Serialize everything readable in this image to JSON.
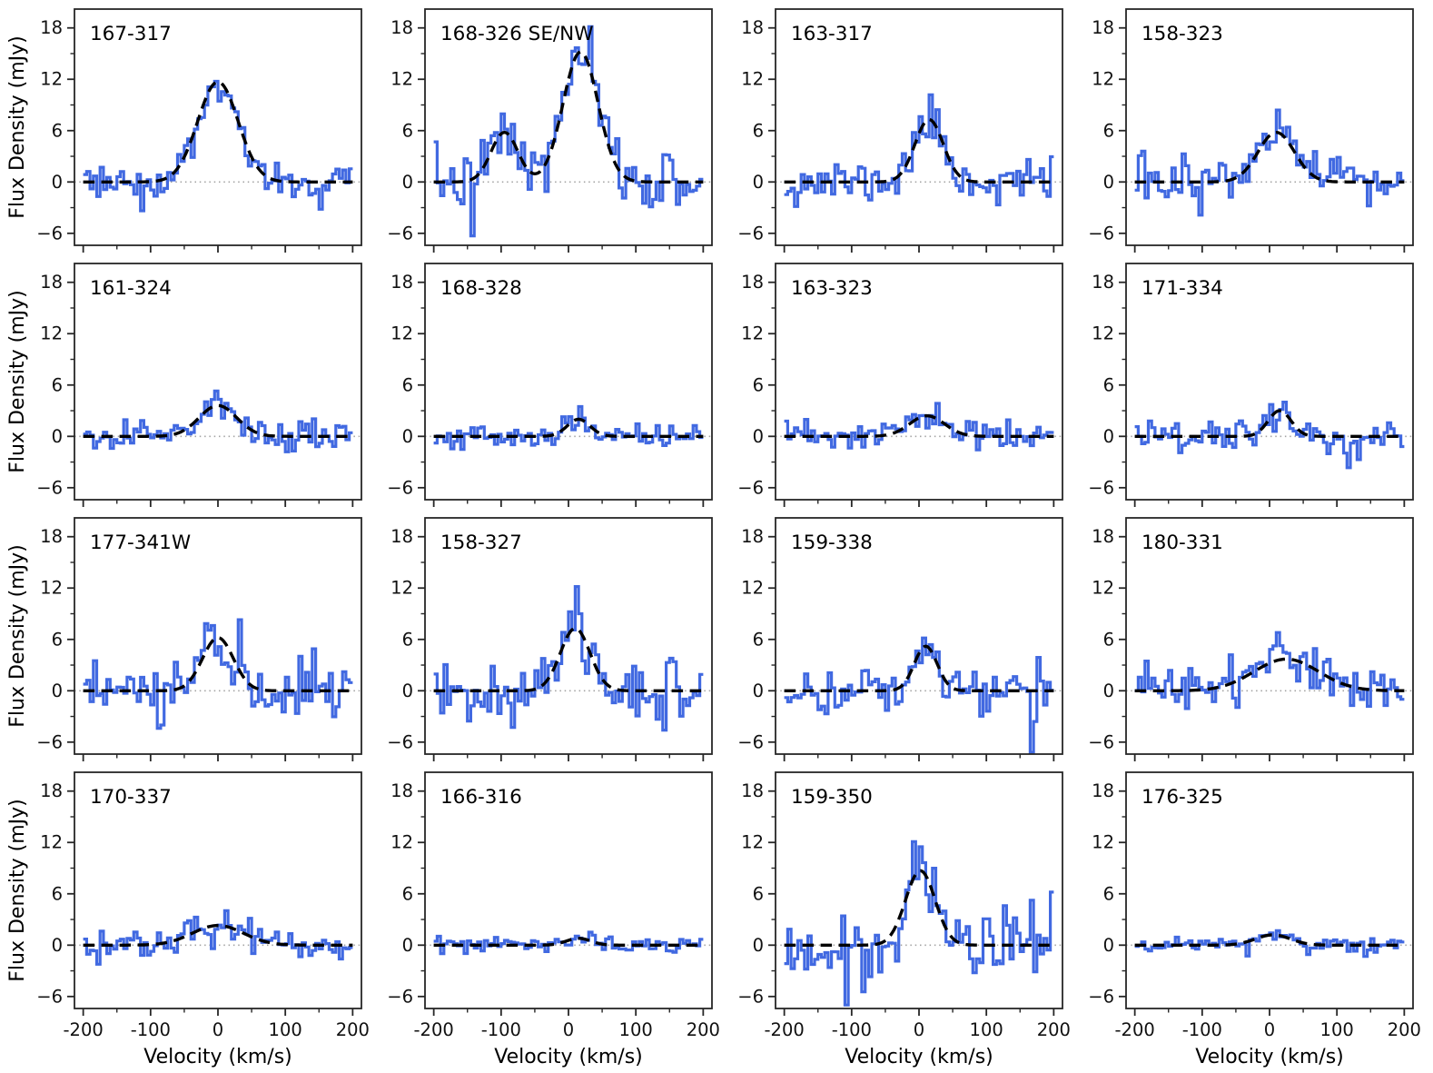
{
  "figure": {
    "ylabel": "Flux Density (mJy)",
    "xlabel": "Velocity (km/s)",
    "colors": {
      "spectrum": "#4169e1",
      "fit": "#000000",
      "zero_line": "#a3a3a3",
      "axis": "#262626",
      "text": "#111111"
    },
    "xlim": [
      -213,
      213
    ],
    "ylim": [
      -7.4,
      20.2
    ],
    "x_ticks": [
      {
        "v": -200,
        "label": "-200"
      },
      {
        "v": -100,
        "label": "-100"
      },
      {
        "v": 0,
        "label": "0"
      },
      {
        "v": 100,
        "label": "100"
      },
      {
        "v": 200,
        "label": "200"
      }
    ],
    "y_ticks": [
      {
        "v": 18,
        "label": "18"
      },
      {
        "v": 12,
        "label": "12"
      },
      {
        "v": 6,
        "label": "6"
      },
      {
        "v": 0,
        "label": "0"
      },
      {
        "v": -6,
        "label": "−6"
      }
    ],
    "x_minor_ticks": [
      -150,
      -50,
      50,
      150
    ],
    "y_minor_ticks": [
      -3,
      3,
      9,
      15
    ]
  },
  "chart_data": {
    "type": "line",
    "description": "4x4 grid of emission-line spectra: blue stepped histogram (observed flux density vs velocity) with black dashed Gaussian fit and dotted zero level in each panel",
    "layout": {
      "rows": 4,
      "cols": 4
    },
    "x_range_km_s": [
      -200,
      200
    ],
    "bin_width_km_s": 5,
    "x_axis_label": "Velocity (km/s)",
    "y_axis_label": "Flux Density (mJy)",
    "panels": [
      {
        "label": "167-317",
        "row": 0,
        "col": 0,
        "fit_gaussians": [
          {
            "amp_mjy": 11.7,
            "center_km_s": 0,
            "sigma_km_s": 30
          }
        ],
        "noise_rms_mjy": 1.1,
        "noise_seed": 3,
        "spikes": []
      },
      {
        "label": "168-326 SE/NW",
        "row": 0,
        "col": 1,
        "fit_gaussians": [
          {
            "amp_mjy": 5.8,
            "center_km_s": -95,
            "sigma_km_s": 20
          },
          {
            "amp_mjy": 15.2,
            "center_km_s": 18,
            "sigma_km_s": 26
          }
        ],
        "noise_rms_mjy": 1.7,
        "noise_seed": 7,
        "spikes": [
          {
            "v_km_s": -145,
            "flux_mjy": -6.3
          }
        ]
      },
      {
        "label": "163-317",
        "row": 0,
        "col": 2,
        "fit_gaussians": [
          {
            "amp_mjy": 7.3,
            "center_km_s": 15,
            "sigma_km_s": 21
          }
        ],
        "noise_rms_mjy": 1.3,
        "noise_seed": 11,
        "spikes": []
      },
      {
        "label": "158-323",
        "row": 0,
        "col": 3,
        "fit_gaussians": [
          {
            "amp_mjy": 5.8,
            "center_km_s": 10,
            "sigma_km_s": 27
          }
        ],
        "noise_rms_mjy": 1.4,
        "noise_seed": 13,
        "spikes": []
      },
      {
        "label": "161-324",
        "row": 1,
        "col": 0,
        "fit_gaussians": [
          {
            "amp_mjy": 3.6,
            "center_km_s": 0,
            "sigma_km_s": 28
          }
        ],
        "noise_rms_mjy": 0.9,
        "noise_seed": 17,
        "spikes": [
          {
            "v_km_s": -5,
            "flux_mjy": 5.3
          }
        ]
      },
      {
        "label": "168-328",
        "row": 1,
        "col": 1,
        "fit_gaussians": [
          {
            "amp_mjy": 2.0,
            "center_km_s": 15,
            "sigma_km_s": 17
          }
        ],
        "noise_rms_mjy": 0.7,
        "noise_seed": 19,
        "spikes": []
      },
      {
        "label": "163-323",
        "row": 1,
        "col": 2,
        "fit_gaussians": [
          {
            "amp_mjy": 2.4,
            "center_km_s": 12,
            "sigma_km_s": 26
          }
        ],
        "noise_rms_mjy": 0.9,
        "noise_seed": 23,
        "spikes": []
      },
      {
        "label": "171-334",
        "row": 1,
        "col": 3,
        "fit_gaussians": [
          {
            "amp_mjy": 3.0,
            "center_km_s": 15,
            "sigma_km_s": 17
          }
        ],
        "noise_rms_mjy": 1.1,
        "noise_seed": 29,
        "spikes": [
          {
            "v_km_s": 20,
            "flux_mjy": 4.0
          }
        ]
      },
      {
        "label": "177-341W",
        "row": 2,
        "col": 0,
        "fit_gaussians": [
          {
            "amp_mjy": 6.2,
            "center_km_s": 0,
            "sigma_km_s": 23
          }
        ],
        "noise_rms_mjy": 1.7,
        "noise_seed": 31,
        "spikes": [
          {
            "v_km_s": 30,
            "flux_mjy": 8.3
          }
        ]
      },
      {
        "label": "158-327",
        "row": 2,
        "col": 1,
        "fit_gaussians": [
          {
            "amp_mjy": 7.3,
            "center_km_s": 10,
            "sigma_km_s": 22
          }
        ],
        "noise_rms_mjy": 1.7,
        "noise_seed": 37,
        "spikes": [
          {
            "v_km_s": 15,
            "flux_mjy": 9.0
          },
          {
            "v_km_s": 145,
            "flux_mjy": 3.3
          },
          {
            "v_km_s": 150,
            "flux_mjy": 3.8
          },
          {
            "v_km_s": 155,
            "flux_mjy": 3.4
          }
        ]
      },
      {
        "label": "159-338",
        "row": 2,
        "col": 2,
        "fit_gaussians": [
          {
            "amp_mjy": 5.2,
            "center_km_s": 10,
            "sigma_km_s": 17
          }
        ],
        "noise_rms_mjy": 1.4,
        "noise_seed": 41,
        "spikes": [
          {
            "v_km_s": 165,
            "flux_mjy": -7.2
          }
        ]
      },
      {
        "label": "180-331",
        "row": 2,
        "col": 3,
        "fit_gaussians": [
          {
            "amp_mjy": 3.7,
            "center_km_s": 25,
            "sigma_km_s": 48
          }
        ],
        "noise_rms_mjy": 1.5,
        "noise_seed": 43,
        "spikes": [
          {
            "v_km_s": 10,
            "flux_mjy": 6.8
          }
        ]
      },
      {
        "label": "170-337",
        "row": 3,
        "col": 0,
        "fit_gaussians": [
          {
            "amp_mjy": 2.3,
            "center_km_s": 0,
            "sigma_km_s": 38
          }
        ],
        "noise_rms_mjy": 0.9,
        "noise_seed": 47,
        "spikes": []
      },
      {
        "label": "166-316",
        "row": 3,
        "col": 1,
        "fit_gaussians": [
          {
            "amp_mjy": 0.8,
            "center_km_s": 15,
            "sigma_km_s": 18
          }
        ],
        "noise_rms_mjy": 0.45,
        "noise_seed": 53,
        "spikes": []
      },
      {
        "label": "159-350",
        "row": 3,
        "col": 2,
        "fit_gaussians": [
          {
            "amp_mjy": 8.7,
            "center_km_s": 2,
            "sigma_km_s": 22
          }
        ],
        "noise_rms_mjy": 2.1,
        "noise_seed": 59,
        "spikes": [
          {
            "v_km_s": 0,
            "flux_mjy": 11.5
          },
          {
            "v_km_s": -110,
            "flux_mjy": -7.0
          },
          {
            "v_km_s": 200,
            "flux_mjy": 6.2
          }
        ]
      },
      {
        "label": "176-325",
        "row": 3,
        "col": 3,
        "fit_gaussians": [
          {
            "amp_mjy": 1.2,
            "center_km_s": 5,
            "sigma_km_s": 26
          }
        ],
        "noise_rms_mjy": 0.5,
        "noise_seed": 61,
        "spikes": []
      }
    ]
  }
}
